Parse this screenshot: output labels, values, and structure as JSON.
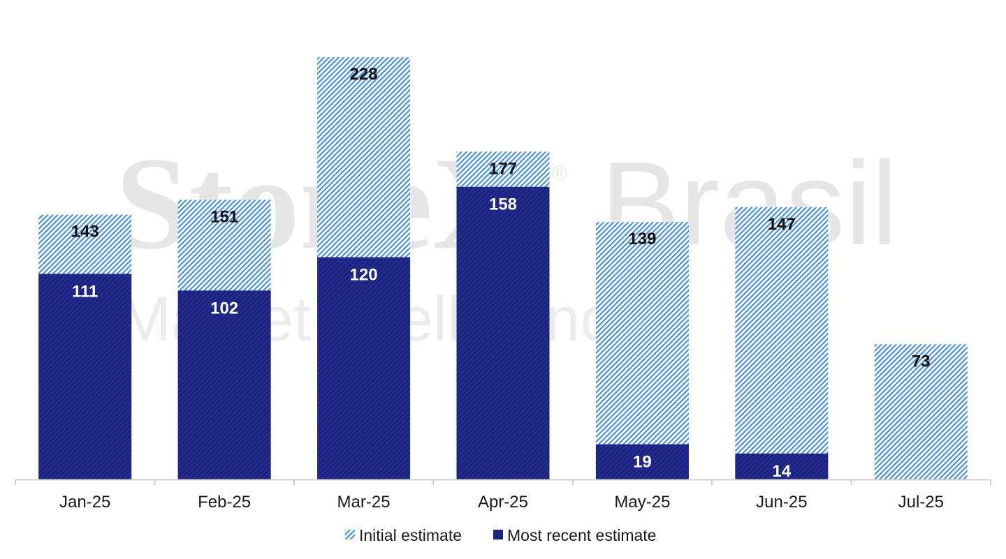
{
  "watermark": {
    "brand": "StoneX",
    "region": "Brasil",
    "registered": "®",
    "tagline": "Market Intelligence"
  },
  "chart_data": {
    "type": "bar",
    "stacked": "overlay",
    "categories": [
      "Jan-25",
      "Feb-25",
      "Mar-25",
      "Apr-25",
      "May-25",
      "Jun-25",
      "Jul-25"
    ],
    "series": [
      {
        "name": "Initial estimate",
        "values": [
          143,
          151,
          228,
          177,
          139,
          147,
          73
        ],
        "color": "#4a90d9",
        "pattern": "hatched"
      },
      {
        "name": "Most recent estimate",
        "values": [
          111,
          102,
          120,
          158,
          19,
          14,
          null
        ],
        "color": "#1a237e",
        "pattern": "solid"
      }
    ],
    "ylim": [
      0,
      240
    ],
    "grid": false,
    "legend": "bottom-center",
    "data_labels": true
  }
}
